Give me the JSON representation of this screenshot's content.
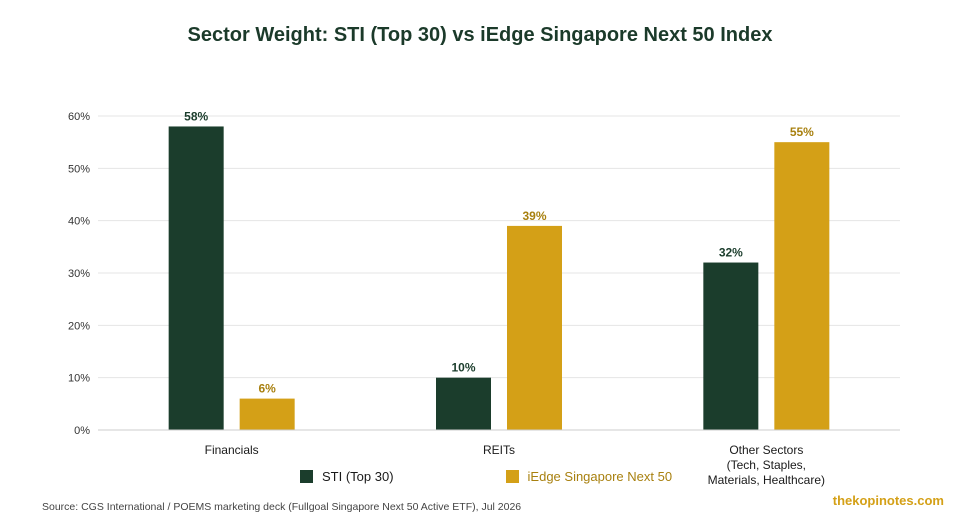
{
  "chart_data": {
    "type": "bar",
    "title": "Sector Weight: STI (Top 30) vs iEdge Singapore Next 50 Index",
    "categories": [
      "Financials",
      "REITs",
      "Other Sectors\n(Tech, Staples,\nMaterials, Healthcare)"
    ],
    "series": [
      {
        "name": "STI (Top 30)",
        "values": [
          58,
          10,
          32
        ],
        "color": "#1b3d2c",
        "label_color": "#1b3d2c"
      },
      {
        "name": "iEdge Singapore Next 50",
        "values": [
          6,
          39,
          55
        ],
        "color": "#d4a017",
        "label_color": "#a8800f"
      }
    ],
    "value_suffix": "%",
    "yticks": [
      "0%",
      "10%",
      "20%",
      "30%",
      "40%",
      "50%",
      "60%"
    ],
    "ylim": [
      0,
      60
    ],
    "grid": true,
    "legend_position": "bottom"
  },
  "footer": {
    "source": "Source: CGS International / POEMS marketing deck (Fullgoal Singapore Next 50 Active ETF), Jul 2026",
    "watermark": "thekopinotes.com"
  }
}
